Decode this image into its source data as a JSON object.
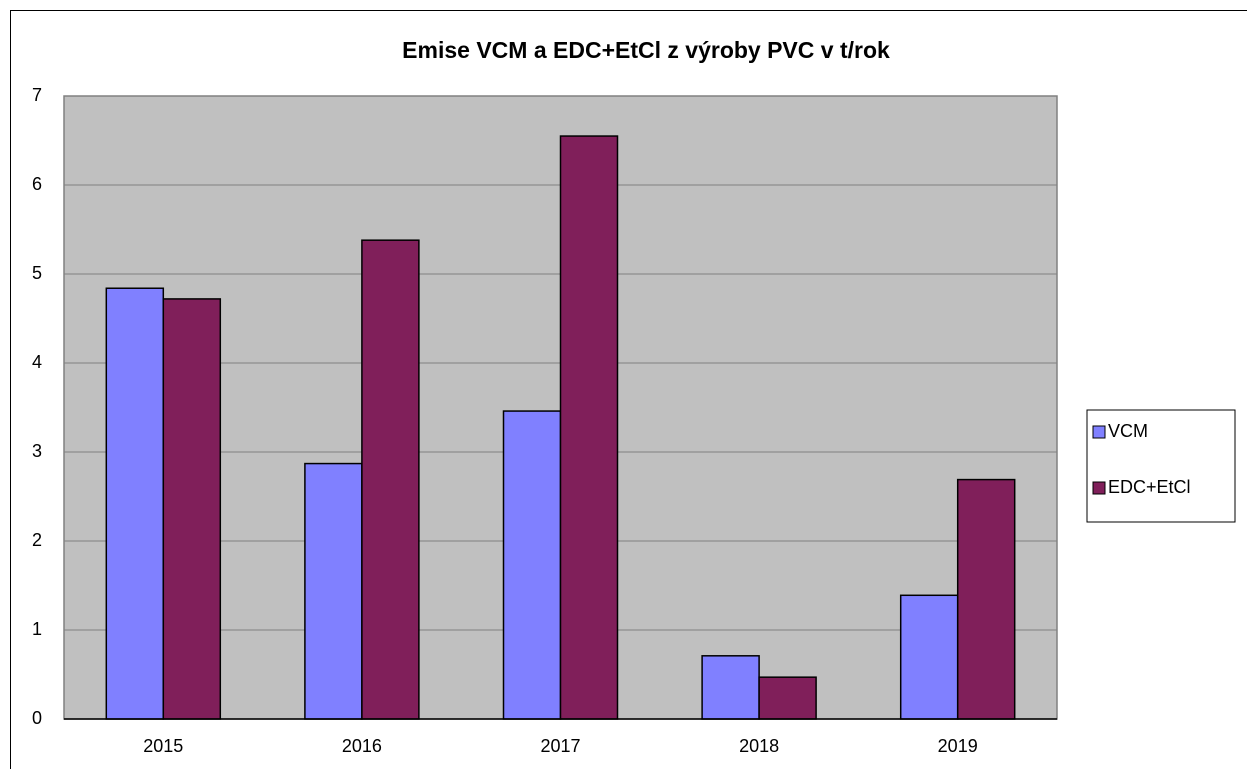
{
  "chart_data": {
    "type": "bar",
    "title": "Emise VCM a EDC+EtCl z výroby PVC v t/rok",
    "categories": [
      "2015",
      "2016",
      "2017",
      "2018",
      "2019"
    ],
    "series": [
      {
        "name": "VCM",
        "color": "#8080ff",
        "values": [
          4.84,
          2.87,
          3.46,
          0.71,
          1.39
        ]
      },
      {
        "name": "EDC+EtCl",
        "color": "#801f5a",
        "values": [
          4.72,
          5.38,
          6.55,
          0.47,
          2.69
        ]
      }
    ],
    "ylim": [
      0,
      7
    ],
    "yticks": [
      0,
      1,
      2,
      3,
      4,
      5,
      6,
      7
    ],
    "grid": true,
    "legend": "right"
  }
}
